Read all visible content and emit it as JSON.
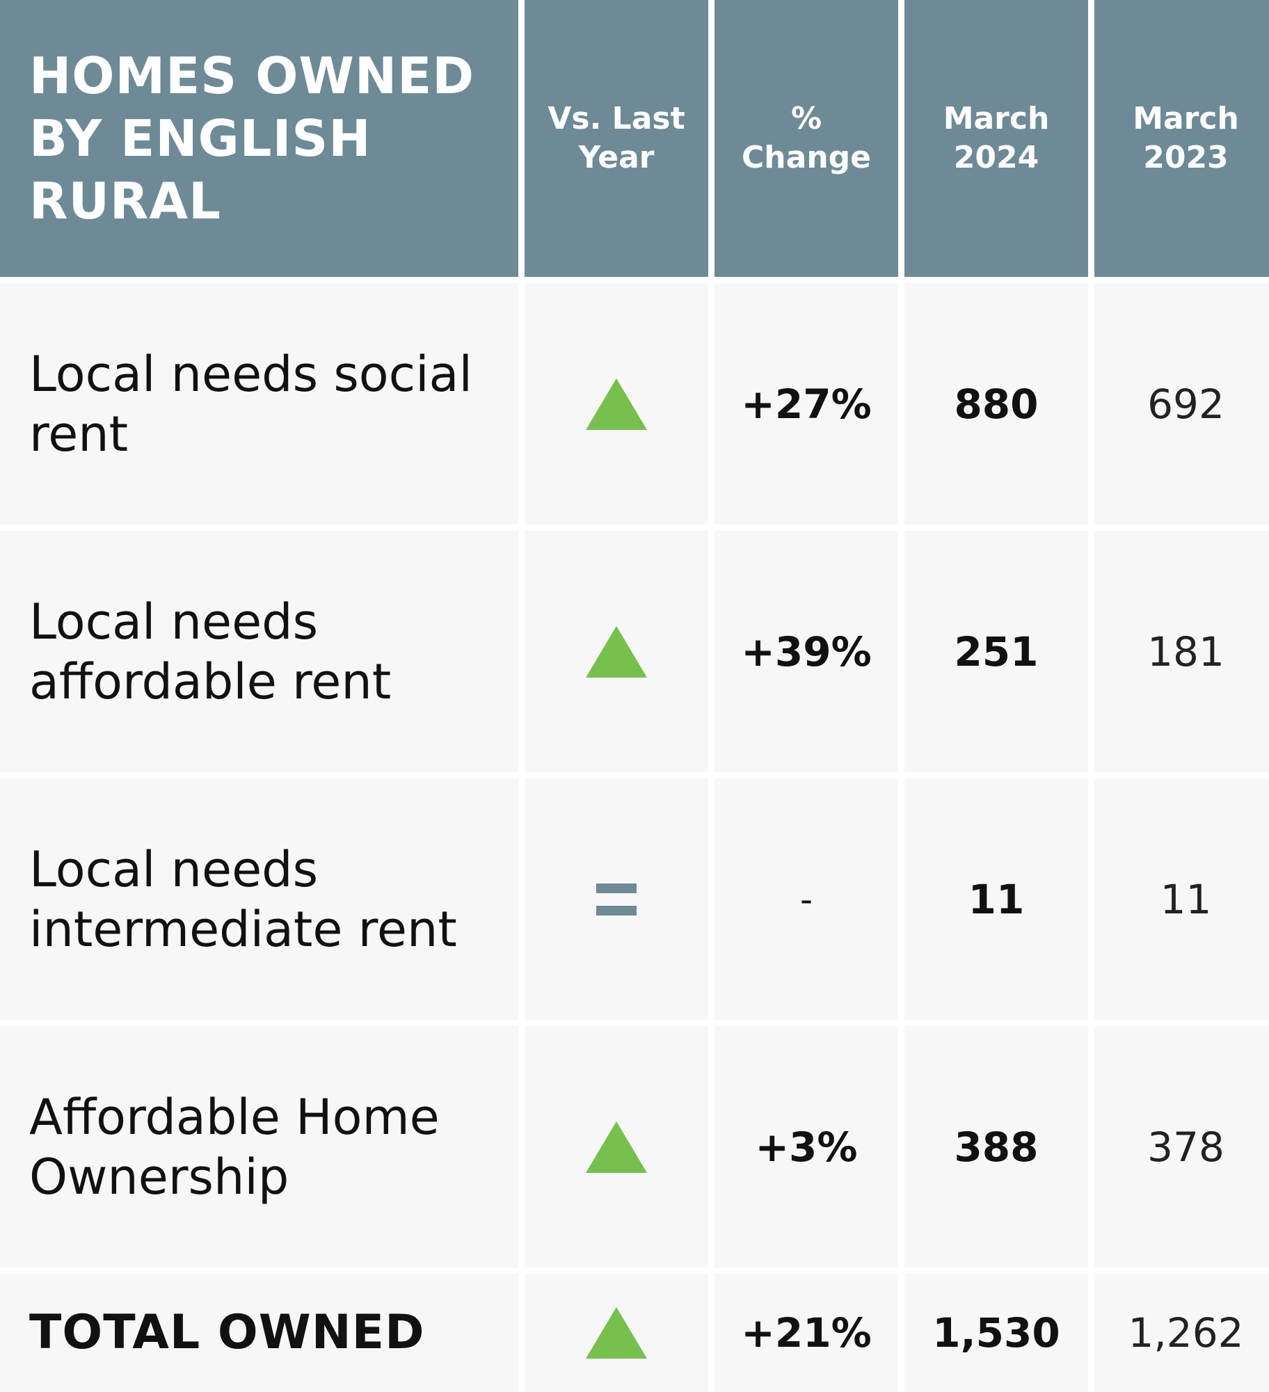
{
  "header": {
    "title": "HOMES OWNED BY ENGLISH RURAL",
    "title_lines": [
      "HOMES OWNED",
      "BY ENGLISH",
      "RURAL"
    ],
    "col_vs_last_year": [
      "Vs. Last",
      "Year"
    ],
    "col_pct_change": [
      "%",
      "Change"
    ],
    "col_march_2024": [
      "March",
      "2024"
    ],
    "col_march_2023": [
      "March",
      "2023"
    ]
  },
  "rows": [
    {
      "label_lines": [
        "Local needs social",
        "rent"
      ],
      "trend_icon": "up-arrow-icon",
      "pct_change": "+27%",
      "march_2024": "880",
      "march_2023": "692"
    },
    {
      "label_lines": [
        "Local needs",
        "affordable rent"
      ],
      "trend_icon": "up-arrow-icon",
      "pct_change": "+39%",
      "march_2024": "251",
      "march_2023": "181"
    },
    {
      "label_lines": [
        "Local needs",
        "intermediate rent"
      ],
      "trend_icon": "equals-icon",
      "pct_change": "-",
      "march_2024": "11",
      "march_2023": "11"
    },
    {
      "label_lines": [
        "Affordable Home",
        "Ownership"
      ],
      "trend_icon": "up-arrow-icon",
      "pct_change": "+3%",
      "march_2024": "388",
      "march_2023": "378"
    }
  ],
  "total": {
    "label": "TOTAL OWNED",
    "trend_icon": "up-arrow-icon",
    "pct_change": "+21%",
    "march_2024": "1,530",
    "march_2023": "1,262"
  },
  "colors": {
    "header_bg": "#6e8a97",
    "cell_bg": "#f7f7f7",
    "up_arrow": "#76c04d",
    "equals": "#6e8a97"
  }
}
